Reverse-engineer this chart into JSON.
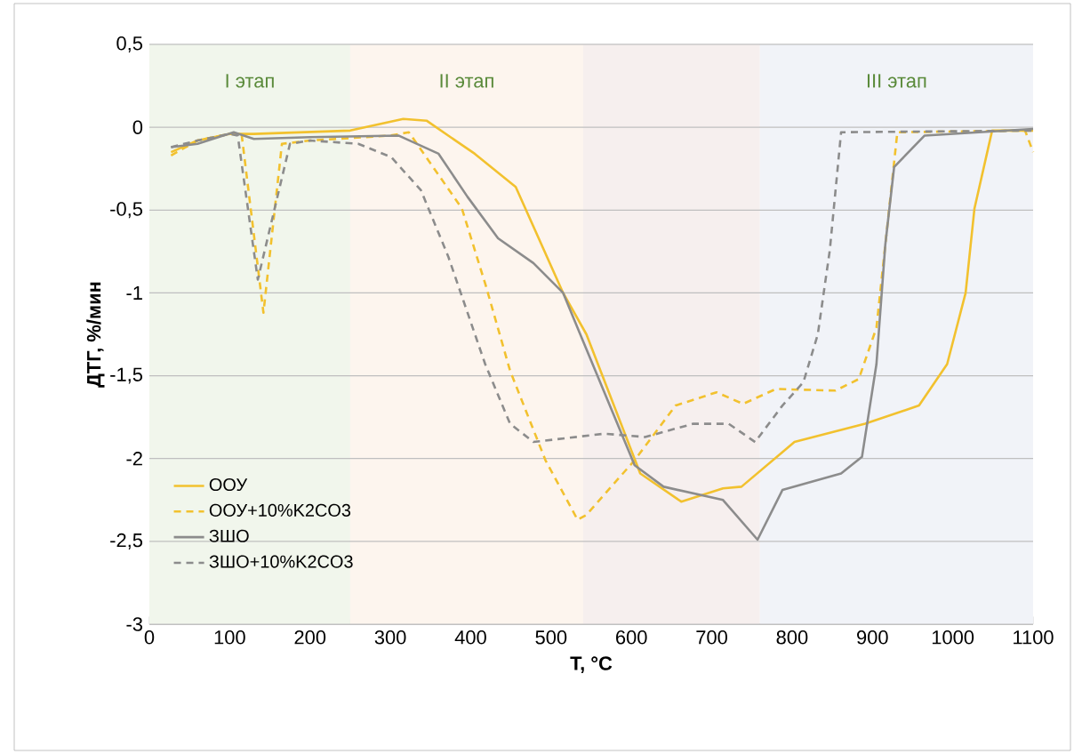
{
  "chart_data": {
    "type": "line",
    "xlabel": "T, °C",
    "ylabel": "ДТГ, %/мин",
    "xlim": [
      0,
      1100
    ],
    "ylim": [
      -3,
      0.5
    ],
    "xticks": [
      0,
      100,
      200,
      300,
      400,
      500,
      600,
      700,
      800,
      900,
      1000,
      1100
    ],
    "yticks": [
      {
        "value": 0.5,
        "label": "0,5"
      },
      {
        "value": 0,
        "label": "0"
      },
      {
        "value": -0.5,
        "label": "-0,5"
      },
      {
        "value": -1,
        "label": "-1"
      },
      {
        "value": -1.5,
        "label": "-1,5"
      },
      {
        "value": -2,
        "label": "-2"
      },
      {
        "value": -2.5,
        "label": "-2,5"
      },
      {
        "value": -3,
        "label": "-3"
      }
    ],
    "grid": "y",
    "legend": "bottom left",
    "bands": [
      {
        "axis": "x",
        "from": 0,
        "to": 250,
        "label": "I этап",
        "color": "#f1f6ec"
      },
      {
        "axis": "x",
        "from": 250,
        "to": 540,
        "label": "II этап",
        "color": "#fdf5ee"
      },
      {
        "axis": "x",
        "from": 540,
        "to": 760,
        "color": "#f6efee"
      },
      {
        "axis": "x",
        "from": 760,
        "to": 1100,
        "label": "III этап",
        "color": "#f1f3f8"
      }
    ],
    "series": [
      {
        "name": "ООУ",
        "color": "#f2c12e",
        "line_style": "solid",
        "x": [
          27,
          60,
          100,
          130,
          250,
          316,
          345,
          405,
          456,
          515,
          544,
          611,
          662,
          714,
          737,
          803,
          891,
          958,
          993,
          1016,
          1027,
          1049,
          1100
        ],
        "values": [
          -0.15,
          -0.08,
          -0.04,
          -0.04,
          -0.02,
          0.05,
          0.04,
          -0.16,
          -0.36,
          -1.0,
          -1.25,
          -2.09,
          -2.26,
          -2.18,
          -2.17,
          -1.9,
          -1.79,
          -1.68,
          -1.43,
          -1.0,
          -0.49,
          -0.02,
          -0.02
        ]
      },
      {
        "name": "ООУ+10%K2CO3",
        "color": "#f2c12e",
        "line_style": "dashed",
        "x": [
          27,
          60,
          100,
          115,
          142,
          165,
          200,
          300,
          323,
          389,
          419,
          449,
          493,
          533,
          544,
          604,
          655,
          706,
          739,
          780,
          854,
          883,
          905,
          931,
          1090,
          1100
        ],
        "values": [
          -0.17,
          -0.08,
          -0.04,
          -0.05,
          -1.12,
          -0.1,
          -0.08,
          -0.05,
          -0.03,
          -0.49,
          -0.96,
          -1.47,
          -2.01,
          -2.37,
          -2.34,
          -2.01,
          -1.68,
          -1.6,
          -1.67,
          -1.58,
          -1.59,
          -1.52,
          -1.21,
          -0.03,
          -0.02,
          -0.15
        ]
      },
      {
        "name": "ЗШО",
        "color": "#8c8c8c",
        "line_style": "solid",
        "x": [
          27,
          60,
          105,
          130,
          200,
          310,
          360,
          396,
          434,
          478,
          515,
          544,
          604,
          640,
          714,
          757,
          788,
          861,
          887,
          905,
          916,
          927,
          965,
          1100
        ],
        "values": [
          -0.12,
          -0.1,
          -0.03,
          -0.07,
          -0.06,
          -0.05,
          -0.16,
          -0.42,
          -0.67,
          -0.82,
          -1.0,
          -1.34,
          -2.04,
          -2.17,
          -2.25,
          -2.49,
          -2.19,
          -2.09,
          -1.99,
          -1.43,
          -0.71,
          -0.24,
          -0.05,
          -0.01
        ]
      },
      {
        "name": "ЗШО+10%K2CO3",
        "color": "#8c8c8c",
        "line_style": "dashed",
        "x": [
          27,
          60,
          100,
          110,
          135,
          175,
          200,
          260,
          301,
          338,
          372,
          418,
          449,
          478,
          566,
          617,
          677,
          721,
          754,
          788,
          814,
          832,
          847,
          861,
          1100
        ],
        "values": [
          -0.12,
          -0.08,
          -0.04,
          -0.05,
          -0.92,
          -0.1,
          -0.08,
          -0.1,
          -0.18,
          -0.38,
          -0.78,
          -1.43,
          -1.79,
          -1.9,
          -1.85,
          -1.87,
          -1.79,
          -1.79,
          -1.9,
          -1.68,
          -1.54,
          -1.25,
          -0.74,
          -0.03,
          -0.02
        ]
      }
    ]
  }
}
